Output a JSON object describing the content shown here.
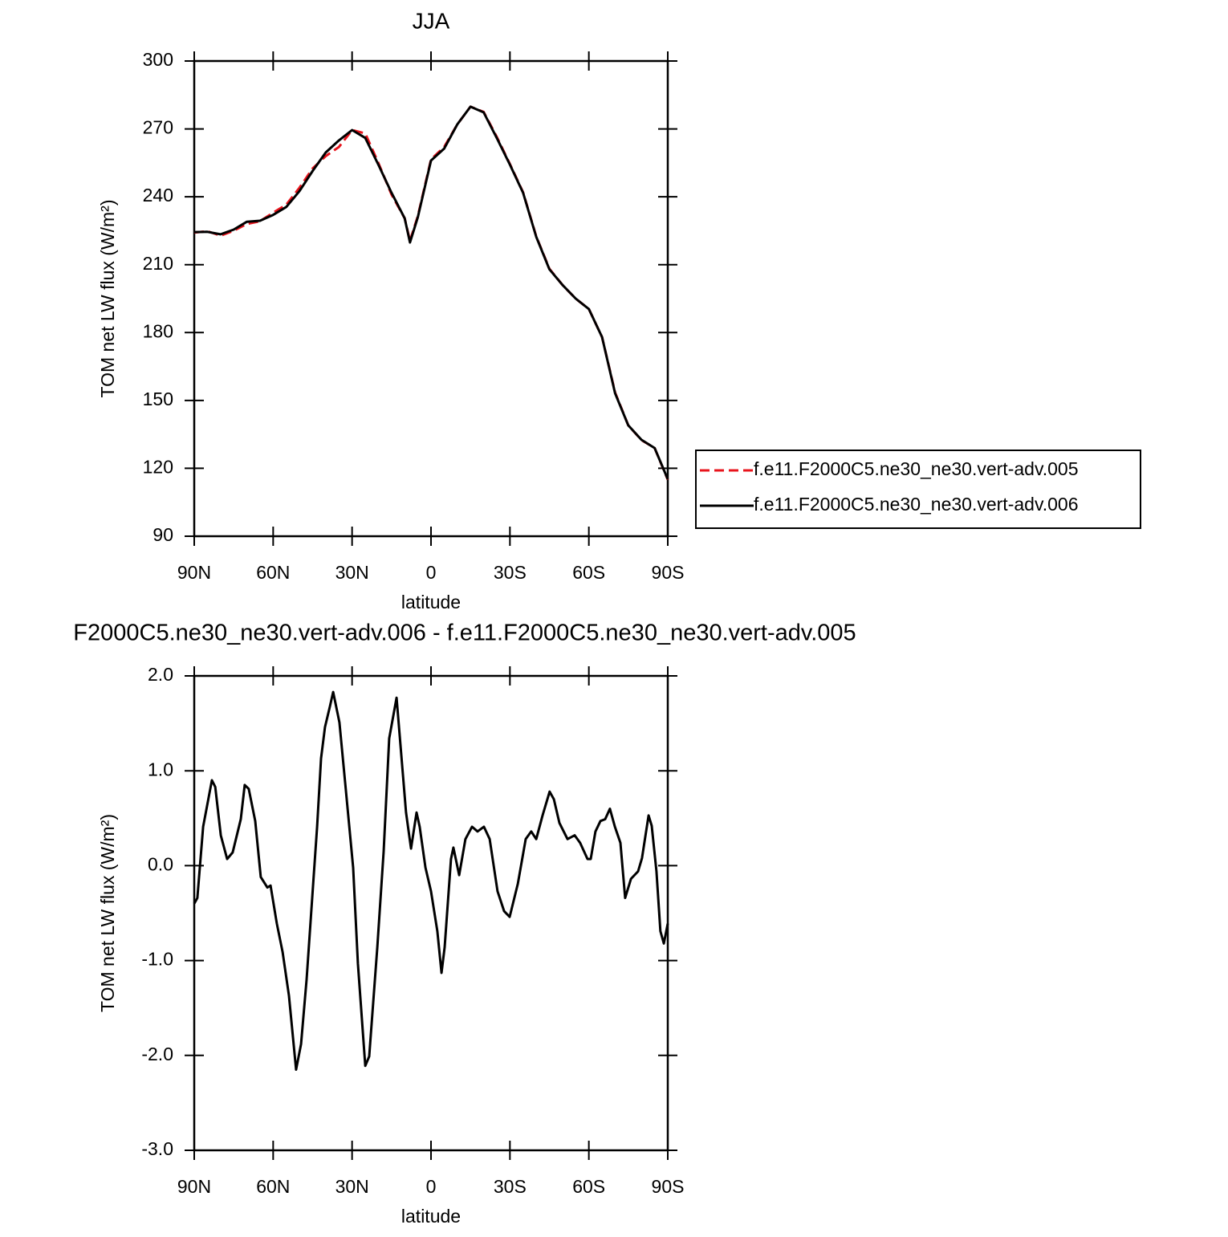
{
  "chart_data": [
    {
      "type": "line",
      "title": "JJA",
      "x_label": "latitude",
      "y_label": "TOM net LW flux (W/m²)",
      "x": [
        90,
        85,
        80,
        75,
        70,
        65,
        60,
        55,
        50,
        45,
        40,
        35,
        30,
        25,
        20,
        15,
        10,
        8,
        5,
        0,
        -5,
        -10,
        -15,
        -20,
        -25,
        -30,
        -35,
        -40,
        -45,
        -50,
        -55,
        -60,
        -65,
        -70,
        -75,
        -80,
        -85,
        -90
      ],
      "series": [
        {
          "name": "f.e11.F2000C5.ne30_ne30.vert-adv.005",
          "color": "#e8141c",
          "dash": true,
          "values": [
            224.2,
            224.8,
            222.8,
            225,
            228,
            229.2,
            233,
            236.5,
            244,
            252.5,
            258,
            262,
            269.5,
            268,
            255,
            241,
            230.5,
            220.5,
            231.5,
            256.5,
            262,
            272,
            279.8,
            277.5,
            266.5,
            254.5,
            242,
            222.5,
            208.2,
            201,
            195,
            190.4,
            178,
            153.5,
            139,
            132.5,
            129,
            115
          ]
        },
        {
          "name": "f.e11.F2000C5.ne30_ne30.vert-adv.006",
          "color": "#000000",
          "dash": false,
          "values": [
            224.4,
            224.5,
            223.4,
            225.5,
            229,
            229.4,
            232,
            235.5,
            242.5,
            251.4,
            259.6,
            264.9,
            269.5,
            266,
            254.2,
            241.8,
            230.5,
            219.8,
            231,
            256,
            261.3,
            272,
            279.8,
            277.3,
            266,
            254.2,
            241.8,
            222.3,
            208,
            201,
            195,
            190.4,
            178,
            153.1,
            139,
            132.6,
            129,
            115.2
          ]
        }
      ],
      "xlim": [
        90,
        -90
      ],
      "xticks": [
        {
          "value": 90,
          "label": "90N"
        },
        {
          "value": 60,
          "label": "60N"
        },
        {
          "value": 30,
          "label": "30N"
        },
        0,
        {
          "value": -30,
          "label": "30S"
        },
        {
          "value": -60,
          "label": "60S"
        },
        {
          "value": -90,
          "label": "90S"
        }
      ],
      "ylim": [
        90,
        300
      ],
      "yticks": [
        90,
        120,
        150,
        180,
        210,
        240,
        270,
        300
      ],
      "legend": "right"
    },
    {
      "type": "line",
      "title": "F2000C5.ne30_ne30.vert-adv.006 - f.e11.F2000C5.ne30_ne30.vert-adv.005",
      "x_label": "latitude",
      "y_label": "TOM net LW flux (W/m²)",
      "color": "#000000",
      "x": [
        90,
        88.8,
        86.6,
        83.3,
        82,
        79.9,
        77.5,
        75.4,
        72.3,
        70.8,
        69.3,
        66.8,
        64.7,
        62.2,
        61,
        58.6,
        56.4,
        54,
        51.3,
        49.4,
        47.3,
        44.8,
        43.3,
        41.8,
        40.3,
        38.4,
        37.2,
        34.8,
        32.6,
        29.6,
        27.8,
        25,
        23.5,
        20.4,
        18,
        15.9,
        13.1,
        9.5,
        7.6,
        5.5,
        4.3,
        2.1,
        0,
        -2.4,
        -4,
        -5.2,
        -7.6,
        -8.5,
        -10.7,
        -13.1,
        -15.6,
        -17.7,
        -20.1,
        -22.3,
        -25.3,
        -27.8,
        -29.9,
        -33,
        -36,
        -38.1,
        -40,
        -42.4,
        -45.1,
        -46.7,
        -48.8,
        -51.9,
        -54.6,
        -56.7,
        -59.5,
        -60.7,
        -62.5,
        -64.4,
        -66.2,
        -68,
        -69.9,
        -72,
        -73.8,
        -76,
        -78.7,
        -80.2,
        -82.7,
        -83.9,
        -85.7,
        -87.2,
        -88.5,
        -90
      ],
      "values": [
        -0.4,
        -0.34,
        0.41,
        0.9,
        0.83,
        0.32,
        0.07,
        0.14,
        0.49,
        0.85,
        0.81,
        0.47,
        -0.12,
        -0.23,
        -0.21,
        -0.61,
        -0.91,
        -1.37,
        -2.15,
        -1.88,
        -1.2,
        -0.19,
        0.41,
        1.13,
        1.46,
        1.68,
        1.83,
        1.51,
        0.87,
        -0.02,
        -1.03,
        -2.11,
        -2.01,
        -0.86,
        0.15,
        1.34,
        1.77,
        0.56,
        0.18,
        0.56,
        0.41,
        -0.02,
        -0.27,
        -0.69,
        -1.13,
        -0.86,
        0.07,
        0.19,
        -0.1,
        0.28,
        0.41,
        0.36,
        0.41,
        0.28,
        -0.27,
        -0.48,
        -0.54,
        -0.19,
        0.28,
        0.36,
        0.28,
        0.53,
        0.78,
        0.7,
        0.45,
        0.28,
        0.32,
        0.24,
        0.07,
        0.07,
        0.36,
        0.47,
        0.49,
        0.6,
        0.41,
        0.24,
        -0.34,
        -0.14,
        -0.06,
        0.08,
        0.53,
        0.42,
        -0.06,
        -0.69,
        -0.82,
        -0.61
      ],
      "xlim": [
        90,
        -90
      ],
      "xticks": [
        {
          "value": 90,
          "label": "90N"
        },
        {
          "value": 60,
          "label": "60N"
        },
        {
          "value": 30,
          "label": "30N"
        },
        0,
        {
          "value": -30,
          "label": "30S"
        },
        {
          "value": -60,
          "label": "60S"
        },
        {
          "value": -90,
          "label": "90S"
        }
      ],
      "ylim": [
        -3,
        2
      ],
      "yticks": [
        {
          "value": -3,
          "label": "-3.0"
        },
        {
          "value": -2,
          "label": "-2.0"
        },
        {
          "value": -1,
          "label": "-1.0"
        },
        {
          "value": 0,
          "label": "0.0"
        },
        {
          "value": 1,
          "label": "1.0"
        },
        {
          "value": 2,
          "label": "2.0"
        }
      ]
    }
  ]
}
